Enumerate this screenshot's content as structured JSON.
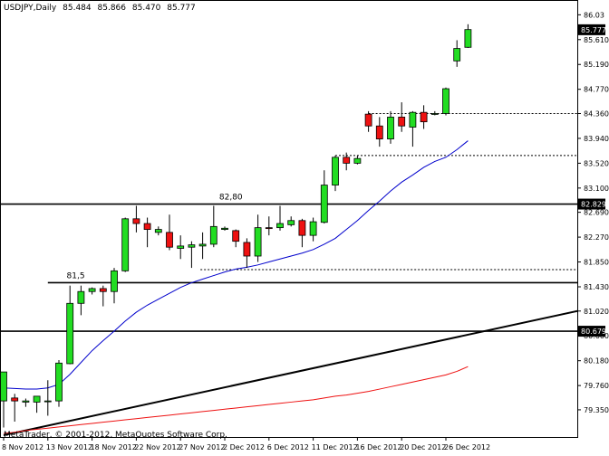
{
  "header": {
    "symbol": "USDJPY,Daily",
    "open": "85.484",
    "high": "85.866",
    "low": "85.470",
    "close": "85.777"
  },
  "footer": {
    "copyright": "MetaTrader, © 2001-2012, MetaQuotes Software Corp."
  },
  "colors": {
    "bull": "#22dd22",
    "bear": "#ee1111",
    "ma_fast": "#0000cc",
    "ma_slow": "#ee1111",
    "level": "#000000"
  },
  "chart_data": {
    "type": "candlestick",
    "title": "USDJPY,Daily",
    "ylim": [
      78.89,
      86.28
    ],
    "y_ticks": [
      "86.03",
      "85.610",
      "85.190",
      "84.770",
      "84.360",
      "83.940",
      "83.520",
      "83.100",
      "82.690",
      "82.270",
      "81.850",
      "81.430",
      "81.020",
      "80.600",
      "80.180",
      "79.760",
      "79.350"
    ],
    "x_ticks": [
      "8 Nov 2012",
      "13 Nov 2012",
      "18 Nov 2012",
      "22 Nov 2012",
      "27 Nov 2012",
      "2 Dec 2012",
      "6 Dec 2012",
      "11 Dec 2012",
      "16 Dec 2012",
      "20 Dec 2012",
      "26 Dec 2012"
    ],
    "candles": [
      {
        "o": 79.5,
        "h": 79.99,
        "l": 79.05,
        "c": 79.99
      },
      {
        "o": 79.55,
        "h": 79.62,
        "l": 79.15,
        "c": 79.5
      },
      {
        "o": 79.48,
        "h": 79.54,
        "l": 79.4,
        "c": 79.5
      },
      {
        "o": 79.48,
        "h": 79.58,
        "l": 79.3,
        "c": 79.58
      },
      {
        "o": 79.5,
        "h": 79.85,
        "l": 79.25,
        "c": 79.5
      },
      {
        "o": 79.5,
        "h": 80.19,
        "l": 79.4,
        "c": 80.14
      },
      {
        "o": 80.13,
        "h": 81.45,
        "l": 80.12,
        "c": 81.15
      },
      {
        "o": 81.15,
        "h": 81.45,
        "l": 80.95,
        "c": 81.35
      },
      {
        "o": 81.35,
        "h": 81.42,
        "l": 81.3,
        "c": 81.4
      },
      {
        "o": 81.4,
        "h": 81.45,
        "l": 81.1,
        "c": 81.35
      },
      {
        "o": 81.35,
        "h": 81.75,
        "l": 81.15,
        "c": 81.7
      },
      {
        "o": 81.7,
        "h": 82.6,
        "l": 81.68,
        "c": 82.58
      },
      {
        "o": 82.58,
        "h": 82.8,
        "l": 82.35,
        "c": 82.5
      },
      {
        "o": 82.5,
        "h": 82.6,
        "l": 82.1,
        "c": 82.4
      },
      {
        "o": 82.35,
        "h": 82.45,
        "l": 82.3,
        "c": 82.4
      },
      {
        "o": 82.35,
        "h": 82.65,
        "l": 82.05,
        "c": 82.1
      },
      {
        "o": 82.08,
        "h": 82.3,
        "l": 81.9,
        "c": 82.12
      },
      {
        "o": 82.1,
        "h": 82.2,
        "l": 81.75,
        "c": 82.14
      },
      {
        "o": 82.12,
        "h": 82.35,
        "l": 81.9,
        "c": 82.15
      },
      {
        "o": 82.15,
        "h": 82.8,
        "l": 82.1,
        "c": 82.45
      },
      {
        "o": 82.4,
        "h": 82.45,
        "l": 82.38,
        "c": 82.42
      },
      {
        "o": 82.38,
        "h": 82.4,
        "l": 82.1,
        "c": 82.2
      },
      {
        "o": 82.18,
        "h": 82.25,
        "l": 81.75,
        "c": 81.95
      },
      {
        "o": 81.95,
        "h": 82.65,
        "l": 81.85,
        "c": 82.43
      },
      {
        "o": 82.43,
        "h": 82.62,
        "l": 82.3,
        "c": 82.42
      },
      {
        "o": 82.43,
        "h": 82.8,
        "l": 82.38,
        "c": 82.5
      },
      {
        "o": 82.48,
        "h": 82.62,
        "l": 82.45,
        "c": 82.55
      },
      {
        "o": 82.55,
        "h": 82.58,
        "l": 82.1,
        "c": 82.3
      },
      {
        "o": 82.3,
        "h": 82.6,
        "l": 82.2,
        "c": 82.53
      },
      {
        "o": 82.52,
        "h": 83.4,
        "l": 82.5,
        "c": 83.15
      },
      {
        "o": 83.15,
        "h": 83.65,
        "l": 83.05,
        "c": 83.62
      },
      {
        "o": 83.62,
        "h": 83.7,
        "l": 83.4,
        "c": 83.52
      },
      {
        "o": 83.52,
        "h": 83.65,
        "l": 83.5,
        "c": 83.6
      },
      {
        "o": 84.35,
        "h": 84.4,
        "l": 84.05,
        "c": 84.15
      },
      {
        "o": 84.15,
        "h": 84.3,
        "l": 83.8,
        "c": 83.93
      },
      {
        "o": 83.93,
        "h": 84.4,
        "l": 83.85,
        "c": 84.3
      },
      {
        "o": 84.3,
        "h": 84.55,
        "l": 84.05,
        "c": 84.15
      },
      {
        "o": 84.13,
        "h": 84.4,
        "l": 83.8,
        "c": 84.38
      },
      {
        "o": 84.38,
        "h": 84.5,
        "l": 84.1,
        "c": 84.22
      },
      {
        "o": 84.35,
        "h": 84.4,
        "l": 84.33,
        "c": 84.36
      },
      {
        "o": 84.36,
        "h": 84.8,
        "l": 84.33,
        "c": 84.78
      },
      {
        "o": 85.25,
        "h": 85.6,
        "l": 85.15,
        "c": 85.46
      },
      {
        "o": 85.48,
        "h": 85.87,
        "l": 85.47,
        "c": 85.78
      }
    ],
    "horizontal_levels": [
      {
        "value": 82.829,
        "label": "82,80",
        "tag": "82.829"
      },
      {
        "value": 81.5,
        "label": "81,5",
        "tag": ""
      },
      {
        "value": 80.679,
        "label": "",
        "tag": "80.679"
      }
    ],
    "dashed_levels": [
      84.36,
      83.65,
      81.72
    ],
    "current_price_tag": "85.777",
    "trendline": {
      "from": [
        0,
        78.92
      ],
      "to": [
        46,
        81.02
      ]
    },
    "ma_fast": [
      79.72,
      79.71,
      79.7,
      79.7,
      79.72,
      79.78,
      79.95,
      80.15,
      80.35,
      80.52,
      80.68,
      80.85,
      81.0,
      81.12,
      81.22,
      81.32,
      81.42,
      81.5,
      81.56,
      81.62,
      81.68,
      81.73,
      81.76,
      81.8,
      81.85,
      81.9,
      81.95,
      82.0,
      82.06,
      82.15,
      82.25,
      82.4,
      82.55,
      82.72,
      82.88,
      83.05,
      83.2,
      83.32,
      83.45,
      83.55,
      83.62,
      83.75,
      83.9
    ],
    "ma_slow": [
      78.95,
      78.97,
      79.0,
      79.02,
      79.04,
      79.06,
      79.08,
      79.1,
      79.12,
      79.14,
      79.16,
      79.18,
      79.2,
      79.22,
      79.24,
      79.26,
      79.28,
      79.3,
      79.32,
      79.34,
      79.36,
      79.38,
      79.4,
      79.42,
      79.44,
      79.46,
      79.48,
      79.5,
      79.52,
      79.55,
      79.58,
      79.6,
      79.63,
      79.66,
      79.7,
      79.74,
      79.78,
      79.82,
      79.86,
      79.9,
      79.94,
      80.0,
      80.08
    ]
  }
}
